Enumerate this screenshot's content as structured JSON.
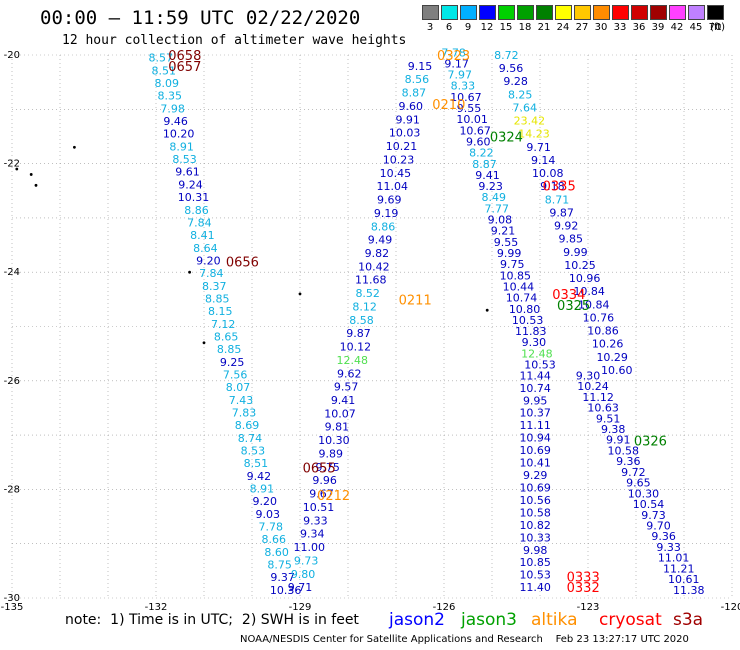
{
  "header": {
    "title": "00:00 – 11:59 UTC 02/22/2020",
    "subtitle": "12 hour collection of altimeter wave heights"
  },
  "colorbar": {
    "unit": "(ft)",
    "stops": [
      {
        "label": "3",
        "color": "#7f7f7f"
      },
      {
        "label": "6",
        "color": "#00e6e6"
      },
      {
        "label": "9",
        "color": "#00b0ff"
      },
      {
        "label": "12",
        "color": "#0000ff"
      },
      {
        "label": "15",
        "color": "#00d000"
      },
      {
        "label": "18",
        "color": "#00a000"
      },
      {
        "label": "21",
        "color": "#008000"
      },
      {
        "label": "24",
        "color": "#ffff00"
      },
      {
        "label": "27",
        "color": "#ffc800"
      },
      {
        "label": "30",
        "color": "#ff8c00"
      },
      {
        "label": "33",
        "color": "#ff0000"
      },
      {
        "label": "36",
        "color": "#d00000"
      },
      {
        "label": "39",
        "color": "#a00000"
      },
      {
        "label": "42",
        "color": "#ff40ff"
      },
      {
        "label": "45",
        "color": "#c080ff"
      },
      {
        "label": "70",
        "color": "#000000"
      }
    ]
  },
  "map": {
    "lon_range": [
      -135,
      -120
    ],
    "lat_range": [
      20,
      30
    ],
    "lon_ticks": [
      "-135",
      "-132",
      "-129",
      "-126",
      "-123",
      "-120"
    ],
    "lat_ticks": [
      "-20",
      "-22",
      "-24",
      "-26",
      "-28",
      "-30"
    ],
    "grid": true,
    "colors": {
      "cyan": "#10b0e0",
      "blue": "#0000c0",
      "green": "#50e050",
      "yellow": "#e6e600",
      "darkred": "#800000",
      "orange": "#ff9000",
      "red": "#ff0000",
      "darkgreen": "#008000"
    },
    "times": [
      {
        "label": "0658",
        "lon": -131.4,
        "lat": 20.0,
        "color": "darkred"
      },
      {
        "label": "0657",
        "lon": -131.4,
        "lat": 20.2,
        "color": "darkred"
      },
      {
        "label": "0656",
        "lon": -130.2,
        "lat": 23.8,
        "color": "darkred"
      },
      {
        "label": "0655",
        "lon": -128.6,
        "lat": 27.6,
        "color": "darkred"
      },
      {
        "label": "0211",
        "lon": -126.6,
        "lat": 24.5,
        "color": "orange"
      },
      {
        "label": "0212",
        "lon": -128.3,
        "lat": 28.1,
        "color": "orange"
      },
      {
        "label": "0210",
        "lon": -125.9,
        "lat": 20.9,
        "color": "orange"
      },
      {
        "label": "0323",
        "lon": -125.8,
        "lat": 20.0,
        "color": "orange"
      },
      {
        "label": "0324",
        "lon": -124.7,
        "lat": 21.5,
        "color": "darkgreen"
      },
      {
        "label": "0325",
        "lon": -123.3,
        "lat": 24.6,
        "color": "darkgreen"
      },
      {
        "label": "0326",
        "lon": -121.7,
        "lat": 27.1,
        "color": "darkgreen"
      },
      {
        "label": "0335",
        "lon": -123.6,
        "lat": 22.4,
        "color": "red"
      },
      {
        "label": "0334",
        "lon": -123.4,
        "lat": 24.4,
        "color": "red"
      },
      {
        "label": "0333",
        "lon": -123.1,
        "lat": 29.6,
        "color": "red"
      },
      {
        "label": "0332",
        "lon": -123.1,
        "lat": 29.8,
        "color": "red"
      }
    ],
    "tracks": [
      {
        "name": "jason3",
        "start": [
          -131.9,
          20.05
        ],
        "end": [
          -129.3,
          29.85
        ],
        "values": [
          "8.57",
          "8.51",
          "8.09",
          "8.35",
          "7.98",
          "9.46",
          "10.20",
          "8.91",
          "8.53",
          "9.61",
          "9.24",
          "10.31",
          "8.86",
          "7.84",
          "8.41",
          "8.64",
          "9.20",
          "7.84",
          "8.37",
          "8.85",
          "8.15",
          "7.12",
          "8.65",
          "8.85",
          "9.25",
          "7.56",
          "8.07",
          "7.43",
          "7.83",
          "8.69",
          "8.74",
          "8.53",
          "8.51",
          "9.42",
          "8.91",
          "9.20",
          "9.03",
          "7.78",
          "8.66",
          "8.60",
          "8.75",
          "9.37",
          "10.36"
        ],
        "colors": [
          "cyan",
          "cyan",
          "cyan",
          "cyan",
          "cyan",
          "blue",
          "blue",
          "cyan",
          "cyan",
          "blue",
          "blue",
          "blue",
          "cyan",
          "cyan",
          "cyan",
          "cyan",
          "blue",
          "cyan",
          "cyan",
          "cyan",
          "cyan",
          "cyan",
          "cyan",
          "cyan",
          "blue",
          "cyan",
          "cyan",
          "cyan",
          "cyan",
          "cyan",
          "cyan",
          "cyan",
          "cyan",
          "blue",
          "cyan",
          "blue",
          "blue",
          "cyan",
          "cyan",
          "cyan",
          "cyan",
          "blue",
          "blue"
        ]
      },
      {
        "name": "altika",
        "start": [
          -126.5,
          20.2
        ],
        "end": [
          -129.0,
          29.8
        ],
        "values": [
          "9.15",
          "8.56",
          "8.87",
          "9.60",
          "9.91",
          "10.03",
          "10.21",
          "10.23",
          "10.45",
          "11.04",
          "9.69",
          "9.19",
          "8.86",
          "9.49",
          "9.82",
          "10.42",
          "11.68",
          "8.52",
          "8.12",
          "8.58",
          "9.87",
          "10.12",
          "12.48",
          "9.62",
          "9.57",
          "9.41",
          "10.07",
          "9.81",
          "10.30",
          "9.89",
          "9.75",
          "9.96",
          "9.67",
          "10.51",
          "9.33",
          "9.34",
          "11.00",
          "9.73",
          "9.80",
          "9.71"
        ],
        "colors": [
          "blue",
          "cyan",
          "cyan",
          "blue",
          "blue",
          "blue",
          "blue",
          "blue",
          "blue",
          "blue",
          "blue",
          "blue",
          "cyan",
          "blue",
          "blue",
          "blue",
          "blue",
          "cyan",
          "cyan",
          "cyan",
          "blue",
          "blue",
          "green",
          "blue",
          "blue",
          "blue",
          "blue",
          "blue",
          "blue",
          "blue",
          "blue",
          "blue",
          "blue",
          "blue",
          "blue",
          "blue",
          "blue",
          "cyan",
          "cyan",
          "blue"
        ]
      },
      {
        "name": "jason2",
        "start": [
          -125.8,
          19.95
        ],
        "end": [
          -124.0,
          25.7
        ],
        "values": [
          "7.78",
          "9.17",
          "7.97",
          "8.33",
          "10.67",
          "9.55",
          "10.01",
          "10.67",
          "9.60",
          "8.22",
          "8.87",
          "9.41",
          "9.23",
          "8.49",
          "7.77",
          "9.08",
          "9.21",
          "9.55",
          "9.99",
          "9.75",
          "10.85",
          "10.44",
          "10.74",
          "10.80",
          "10.53",
          "11.83",
          "9.30",
          "12.48",
          "10.53"
        ],
        "colors": [
          "cyan",
          "blue",
          "cyan",
          "cyan",
          "blue",
          "blue",
          "blue",
          "blue",
          "blue",
          "cyan",
          "cyan",
          "blue",
          "blue",
          "cyan",
          "cyan",
          "blue",
          "blue",
          "blue",
          "blue",
          "blue",
          "blue",
          "blue",
          "blue",
          "blue",
          "blue",
          "blue",
          "blue",
          "green",
          "blue"
        ]
      },
      {
        "name": "cryosat",
        "start": [
          -124.7,
          20.0
        ],
        "end": [
          -122.4,
          25.8
        ],
        "values": [
          "8.72",
          "9.56",
          "9.28",
          "8.25",
          "7.64",
          "23.42",
          "14.23",
          "9.71",
          "9.14",
          "10.08",
          "9.18",
          "8.71",
          "9.87",
          "9.92",
          "9.85",
          "9.99",
          "10.25",
          "10.96",
          "10.84",
          "10.84",
          "10.76",
          "10.86",
          "10.26",
          "10.29",
          "10.60"
        ],
        "colors": [
          "cyan",
          "blue",
          "blue",
          "cyan",
          "cyan",
          "yellow",
          "yellow",
          "blue",
          "blue",
          "blue",
          "blue",
          "cyan",
          "blue",
          "blue",
          "blue",
          "blue",
          "blue",
          "blue",
          "blue",
          "blue",
          "blue",
          "blue",
          "blue",
          "blue",
          "blue"
        ]
      },
      {
        "name": "s3a",
        "start": [
          -124.1,
          25.9
        ],
        "end": [
          -124.1,
          29.8
        ],
        "values": [
          "11.44",
          "10.74",
          "9.95",
          "10.37",
          "11.11",
          "10.94",
          "10.69",
          "10.41",
          "9.29",
          "10.69",
          "10.56",
          "10.58",
          "10.82",
          "10.33",
          "9.98",
          "10.85",
          "10.53",
          "11.40"
        ],
        "colors": [
          "blue",
          "blue",
          "blue",
          "blue",
          "blue",
          "blue",
          "blue",
          "blue",
          "blue",
          "blue",
          "blue",
          "blue",
          "blue",
          "blue",
          "blue",
          "blue",
          "blue",
          "blue"
        ]
      },
      {
        "name": "cryosat-south",
        "start": [
          -123.0,
          25.9
        ],
        "end": [
          -120.9,
          29.85
        ],
        "values": [
          "9.30",
          "10.24",
          "11.12",
          "10.63",
          "9.51",
          "9.38",
          "9.91",
          "10.58",
          "9.36",
          "9.72",
          "9.65",
          "10.30",
          "10.54",
          "9.73",
          "9.70",
          "9.36",
          "9.33",
          "11.01",
          "11.21",
          "10.61",
          "11.38"
        ],
        "colors": [
          "blue",
          "blue",
          "blue",
          "blue",
          "blue",
          "blue",
          "blue",
          "blue",
          "blue",
          "blue",
          "blue",
          "blue",
          "blue",
          "blue",
          "blue",
          "blue",
          "blue",
          "blue",
          "blue",
          "blue",
          "blue"
        ]
      }
    ],
    "islands": [
      {
        "lon": -134.6,
        "lat": 22.2
      },
      {
        "lon": -134.9,
        "lat": 22.1
      },
      {
        "lon": -134.5,
        "lat": 22.4
      },
      {
        "lon": -133.7,
        "lat": 21.7
      },
      {
        "lon": -131.3,
        "lat": 24.0
      },
      {
        "lon": -129.0,
        "lat": 24.4
      },
      {
        "lon": -125.1,
        "lat": 24.7
      },
      {
        "lon": -131.0,
        "lat": 25.3
      }
    ]
  },
  "footer": {
    "note": "note:  1) Time is in UTC;  2) SWH is in feet",
    "missions": [
      {
        "label": "jason2",
        "color": "#0000ff"
      },
      {
        "label": "jason3",
        "color": "#00a000"
      },
      {
        "label": "altika",
        "color": "#ff9000"
      },
      {
        "label": "cryosat",
        "color": "#ff0000"
      },
      {
        "label": "s3a",
        "color": "#a00000"
      }
    ],
    "credit": "NOAA/NESDIS Center for Satellite Applications and Research    Feb 23 13:27:17 UTC 2020"
  }
}
